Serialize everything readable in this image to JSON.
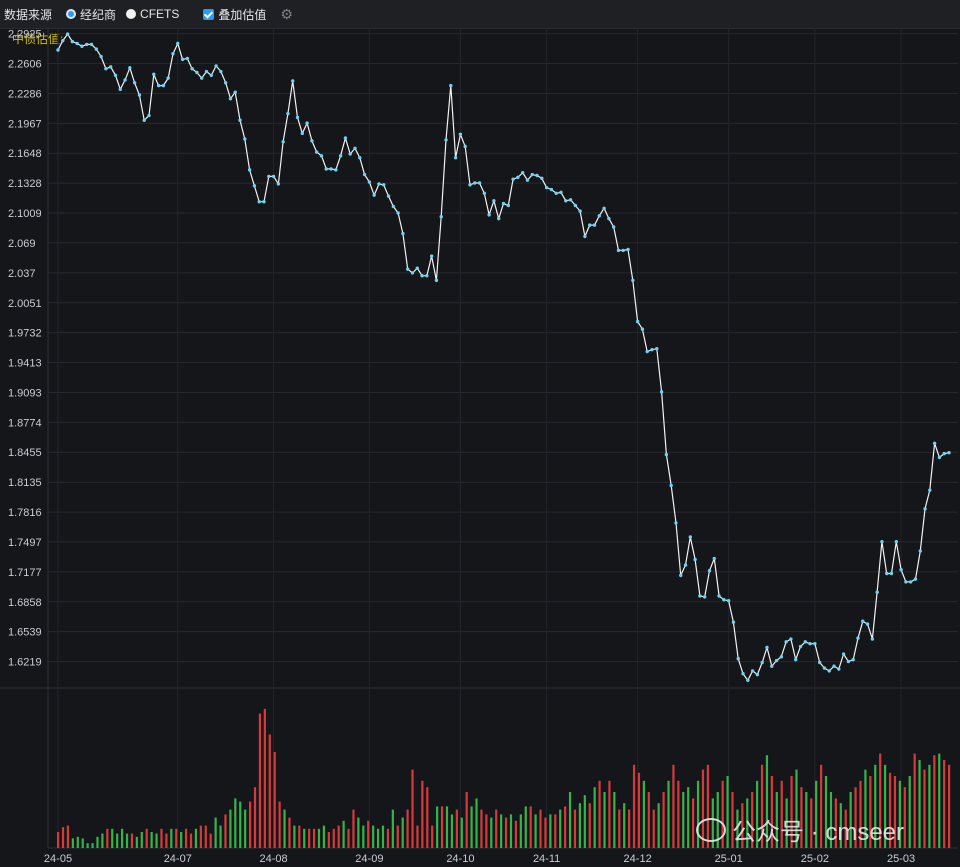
{
  "toolbar": {
    "source_label": "数据来源",
    "option_broker": "经纪商",
    "option_cfets": "CFETS",
    "overlay_label": "叠加估值",
    "settings_icon": "gear-icon"
  },
  "legend": {
    "label": "中债估值:"
  },
  "watermark": {
    "text": "公众号 · cmseer",
    "icon": "wechat-icon"
  },
  "colors": {
    "background": "#15161a",
    "line": "#f2f2f2",
    "marker": "#6fd3f0",
    "volume_up": "#d63a3a",
    "volume_down": "#34b44a",
    "legend": "#d8c200"
  },
  "chart_data": {
    "type": "line",
    "y_ticks": [
      "2.2925",
      "2.2606",
      "2.2286",
      "2.1967",
      "2.1648",
      "2.1328",
      "2.1009",
      "2.069",
      "2.037",
      "2.0051",
      "1.9732",
      "1.9413",
      "1.9093",
      "1.8774",
      "1.8455",
      "1.8135",
      "1.7816",
      "1.7497",
      "1.7177",
      "1.6858",
      "1.6539",
      "1.6219"
    ],
    "x_ticks": [
      "24-05",
      "24-07",
      "24-08",
      "24-09",
      "24-10",
      "24-11",
      "24-12",
      "25-01",
      "25-02",
      "25-03"
    ],
    "ylim": [
      1.598,
      2.2985
    ],
    "grid": true,
    "series": [
      {
        "values": [
          2.275,
          2.285,
          2.292,
          2.284,
          2.282,
          2.279,
          2.281,
          2.281,
          2.276,
          2.268,
          2.255,
          2.257,
          2.248,
          2.233,
          2.243,
          2.256,
          2.24,
          2.227,
          2.2,
          2.205,
          2.249,
          2.237,
          2.237,
          2.245,
          2.271,
          2.282,
          2.265,
          2.266,
          2.255,
          2.251,
          2.245,
          2.252,
          2.248,
          2.258,
          2.252,
          2.24,
          2.223,
          2.23,
          2.2,
          2.18,
          2.147,
          2.13,
          2.113,
          2.113,
          2.14,
          2.14,
          2.132,
          2.177,
          2.207,
          2.242,
          2.203,
          2.186,
          2.197,
          2.178,
          2.166,
          2.162,
          2.148,
          2.148,
          2.147,
          2.162,
          2.181,
          2.164,
          2.17,
          2.16,
          2.142,
          2.134,
          2.12,
          2.132,
          2.131,
          2.119,
          2.108,
          2.101,
          2.079,
          2.041,
          2.037,
          2.042,
          2.034,
          2.034,
          2.055,
          2.029,
          2.097,
          2.179,
          2.237,
          2.16,
          2.185,
          2.172,
          2.131,
          2.133,
          2.133,
          2.122,
          2.099,
          2.114,
          2.095,
          2.111,
          2.109,
          2.137,
          2.139,
          2.144,
          2.136,
          2.142,
          2.141,
          2.138,
          2.128,
          2.126,
          2.122,
          2.123,
          2.114,
          2.115,
          2.109,
          2.103,
          2.076,
          2.088,
          2.088,
          2.098,
          2.106,
          2.095,
          2.086,
          2.061,
          2.061,
          2.062,
          2.029,
          1.985,
          1.977,
          1.953,
          1.955,
          1.956,
          1.91,
          1.843,
          1.81,
          1.77,
          1.714,
          1.725,
          1.755,
          1.731,
          1.692,
          1.691,
          1.719,
          1.732,
          1.692,
          1.688,
          1.687,
          1.664,
          1.625,
          1.609,
          1.602,
          1.612,
          1.608,
          1.621,
          1.637,
          1.617,
          1.623,
          1.627,
          1.643,
          1.646,
          1.624,
          1.638,
          1.643,
          1.641,
          1.641,
          1.621,
          1.615,
          1.612,
          1.617,
          1.614,
          1.63,
          1.622,
          1.624,
          1.647,
          1.665,
          1.662,
          1.646,
          1.696,
          1.75,
          1.716,
          1.716,
          1.75,
          1.72,
          1.707,
          1.707,
          1.71,
          1.74,
          1.785,
          1.805,
          1.855,
          1.84,
          1.844,
          1.845
        ]
      }
    ],
    "volume": [
      {
        "v": 0.1,
        "c": "r"
      },
      {
        "v": 0.13,
        "c": "r"
      },
      {
        "v": 0.14,
        "c": "r"
      },
      {
        "v": 0.06,
        "c": "g"
      },
      {
        "v": 0.07,
        "c": "g"
      },
      {
        "v": 0.06,
        "c": "g"
      },
      {
        "v": 0.03,
        "c": "g"
      },
      {
        "v": 0.03,
        "c": "g"
      },
      {
        "v": 0.07,
        "c": "g"
      },
      {
        "v": 0.09,
        "c": "g"
      },
      {
        "v": 0.12,
        "c": "r"
      },
      {
        "v": 0.12,
        "c": "g"
      },
      {
        "v": 0.09,
        "c": "g"
      },
      {
        "v": 0.12,
        "c": "g"
      },
      {
        "v": 0.09,
        "c": "g"
      },
      {
        "v": 0.09,
        "c": "r"
      },
      {
        "v": 0.07,
        "c": "g"
      },
      {
        "v": 0.1,
        "c": "g"
      },
      {
        "v": 0.12,
        "c": "r"
      },
      {
        "v": 0.1,
        "c": "g"
      },
      {
        "v": 0.09,
        "c": "g"
      },
      {
        "v": 0.12,
        "c": "r"
      },
      {
        "v": 0.09,
        "c": "r"
      },
      {
        "v": 0.12,
        "c": "g"
      },
      {
        "v": 0.12,
        "c": "r"
      },
      {
        "v": 0.1,
        "c": "g"
      },
      {
        "v": 0.12,
        "c": "r"
      },
      {
        "v": 0.09,
        "c": "r"
      },
      {
        "v": 0.12,
        "c": "g"
      },
      {
        "v": 0.14,
        "c": "r"
      },
      {
        "v": 0.14,
        "c": "r"
      },
      {
        "v": 0.09,
        "c": "r"
      },
      {
        "v": 0.19,
        "c": "g"
      },
      {
        "v": 0.14,
        "c": "g"
      },
      {
        "v": 0.21,
        "c": "r"
      },
      {
        "v": 0.24,
        "c": "g"
      },
      {
        "v": 0.31,
        "c": "g"
      },
      {
        "v": 0.29,
        "c": "g"
      },
      {
        "v": 0.24,
        "c": "g"
      },
      {
        "v": 0.29,
        "c": "r"
      },
      {
        "v": 0.38,
        "c": "r"
      },
      {
        "v": 0.84,
        "c": "r"
      },
      {
        "v": 0.87,
        "c": "r"
      },
      {
        "v": 0.71,
        "c": "r"
      },
      {
        "v": 0.6,
        "c": "r"
      },
      {
        "v": 0.29,
        "c": "r"
      },
      {
        "v": 0.24,
        "c": "g"
      },
      {
        "v": 0.19,
        "c": "r"
      },
      {
        "v": 0.14,
        "c": "g"
      },
      {
        "v": 0.14,
        "c": "r"
      },
      {
        "v": 0.12,
        "c": "g"
      },
      {
        "v": 0.12,
        "c": "r"
      },
      {
        "v": 0.12,
        "c": "r"
      },
      {
        "v": 0.12,
        "c": "g"
      },
      {
        "v": 0.14,
        "c": "g"
      },
      {
        "v": 0.1,
        "c": "r"
      },
      {
        "v": 0.12,
        "c": "r"
      },
      {
        "v": 0.14,
        "c": "r"
      },
      {
        "v": 0.17,
        "c": "g"
      },
      {
        "v": 0.12,
        "c": "r"
      },
      {
        "v": 0.24,
        "c": "r"
      },
      {
        "v": 0.19,
        "c": "g"
      },
      {
        "v": 0.14,
        "c": "g"
      },
      {
        "v": 0.17,
        "c": "r"
      },
      {
        "v": 0.14,
        "c": "g"
      },
      {
        "v": 0.12,
        "c": "g"
      },
      {
        "v": 0.14,
        "c": "g"
      },
      {
        "v": 0.12,
        "c": "r"
      },
      {
        "v": 0.24,
        "c": "g"
      },
      {
        "v": 0.14,
        "c": "r"
      },
      {
        "v": 0.19,
        "c": "g"
      },
      {
        "v": 0.24,
        "c": "r"
      },
      {
        "v": 0.49,
        "c": "r"
      },
      {
        "v": 0.14,
        "c": "r"
      },
      {
        "v": 0.42,
        "c": "r"
      },
      {
        "v": 0.38,
        "c": "r"
      },
      {
        "v": 0.14,
        "c": "r"
      },
      {
        "v": 0.26,
        "c": "g"
      },
      {
        "v": 0.26,
        "c": "r"
      },
      {
        "v": 0.26,
        "c": "g"
      },
      {
        "v": 0.21,
        "c": "g"
      },
      {
        "v": 0.24,
        "c": "r"
      },
      {
        "v": 0.19,
        "c": "g"
      },
      {
        "v": 0.35,
        "c": "r"
      },
      {
        "v": 0.26,
        "c": "g"
      },
      {
        "v": 0.31,
        "c": "g"
      },
      {
        "v": 0.24,
        "c": "r"
      },
      {
        "v": 0.21,
        "c": "r"
      },
      {
        "v": 0.19,
        "c": "g"
      },
      {
        "v": 0.24,
        "c": "r"
      },
      {
        "v": 0.21,
        "c": "g"
      },
      {
        "v": 0.19,
        "c": "r"
      },
      {
        "v": 0.21,
        "c": "g"
      },
      {
        "v": 0.17,
        "c": "r"
      },
      {
        "v": 0.21,
        "c": "g"
      },
      {
        "v": 0.26,
        "c": "g"
      },
      {
        "v": 0.26,
        "c": "r"
      },
      {
        "v": 0.21,
        "c": "g"
      },
      {
        "v": 0.24,
        "c": "r"
      },
      {
        "v": 0.19,
        "c": "r"
      },
      {
        "v": 0.21,
        "c": "g"
      },
      {
        "v": 0.21,
        "c": "r"
      },
      {
        "v": 0.24,
        "c": "g"
      },
      {
        "v": 0.26,
        "c": "r"
      },
      {
        "v": 0.35,
        "c": "g"
      },
      {
        "v": 0.24,
        "c": "r"
      },
      {
        "v": 0.28,
        "c": "g"
      },
      {
        "v": 0.33,
        "c": "g"
      },
      {
        "v": 0.28,
        "c": "r"
      },
      {
        "v": 0.38,
        "c": "g"
      },
      {
        "v": 0.42,
        "c": "r"
      },
      {
        "v": 0.35,
        "c": "g"
      },
      {
        "v": 0.42,
        "c": "r"
      },
      {
        "v": 0.35,
        "c": "g"
      },
      {
        "v": 0.24,
        "c": "r"
      },
      {
        "v": 0.28,
        "c": "g"
      },
      {
        "v": 0.24,
        "c": "r"
      },
      {
        "v": 0.52,
        "c": "r"
      },
      {
        "v": 0.47,
        "c": "r"
      },
      {
        "v": 0.42,
        "c": "g"
      },
      {
        "v": 0.35,
        "c": "r"
      },
      {
        "v": 0.24,
        "c": "r"
      },
      {
        "v": 0.28,
        "c": "g"
      },
      {
        "v": 0.35,
        "c": "r"
      },
      {
        "v": 0.42,
        "c": "g"
      },
      {
        "v": 0.52,
        "c": "r"
      },
      {
        "v": 0.42,
        "c": "r"
      },
      {
        "v": 0.35,
        "c": "g"
      },
      {
        "v": 0.38,
        "c": "g"
      },
      {
        "v": 0.31,
        "c": "r"
      },
      {
        "v": 0.42,
        "c": "g"
      },
      {
        "v": 0.49,
        "c": "r"
      },
      {
        "v": 0.52,
        "c": "r"
      },
      {
        "v": 0.31,
        "c": "g"
      },
      {
        "v": 0.35,
        "c": "g"
      },
      {
        "v": 0.42,
        "c": "r"
      },
      {
        "v": 0.45,
        "c": "g"
      },
      {
        "v": 0.35,
        "c": "r"
      },
      {
        "v": 0.24,
        "c": "g"
      },
      {
        "v": 0.28,
        "c": "r"
      },
      {
        "v": 0.31,
        "c": "g"
      },
      {
        "v": 0.35,
        "c": "r"
      },
      {
        "v": 0.42,
        "c": "g"
      },
      {
        "v": 0.52,
        "c": "r"
      },
      {
        "v": 0.58,
        "c": "g"
      },
      {
        "v": 0.45,
        "c": "r"
      },
      {
        "v": 0.35,
        "c": "g"
      },
      {
        "v": 0.42,
        "c": "r"
      },
      {
        "v": 0.31,
        "c": "g"
      },
      {
        "v": 0.45,
        "c": "r"
      },
      {
        "v": 0.49,
        "c": "g"
      },
      {
        "v": 0.38,
        "c": "r"
      },
      {
        "v": 0.35,
        "c": "g"
      },
      {
        "v": 0.31,
        "c": "r"
      },
      {
        "v": 0.42,
        "c": "g"
      },
      {
        "v": 0.52,
        "c": "r"
      },
      {
        "v": 0.45,
        "c": "g"
      },
      {
        "v": 0.35,
        "c": "g"
      },
      {
        "v": 0.31,
        "c": "r"
      },
      {
        "v": 0.28,
        "c": "g"
      },
      {
        "v": 0.24,
        "c": "r"
      },
      {
        "v": 0.35,
        "c": "g"
      },
      {
        "v": 0.38,
        "c": "r"
      },
      {
        "v": 0.42,
        "c": "r"
      },
      {
        "v": 0.49,
        "c": "g"
      },
      {
        "v": 0.45,
        "c": "r"
      },
      {
        "v": 0.52,
        "c": "g"
      },
      {
        "v": 0.59,
        "c": "r"
      },
      {
        "v": 0.52,
        "c": "g"
      },
      {
        "v": 0.47,
        "c": "r"
      },
      {
        "v": 0.45,
        "c": "r"
      },
      {
        "v": 0.42,
        "c": "g"
      },
      {
        "v": 0.38,
        "c": "r"
      },
      {
        "v": 0.45,
        "c": "g"
      },
      {
        "v": 0.59,
        "c": "r"
      },
      {
        "v": 0.55,
        "c": "g"
      },
      {
        "v": 0.49,
        "c": "r"
      },
      {
        "v": 0.52,
        "c": "g"
      },
      {
        "v": 0.58,
        "c": "r"
      },
      {
        "v": 0.59,
        "c": "g"
      },
      {
        "v": 0.55,
        "c": "r"
      },
      {
        "v": 0.52,
        "c": "r"
      }
    ]
  }
}
